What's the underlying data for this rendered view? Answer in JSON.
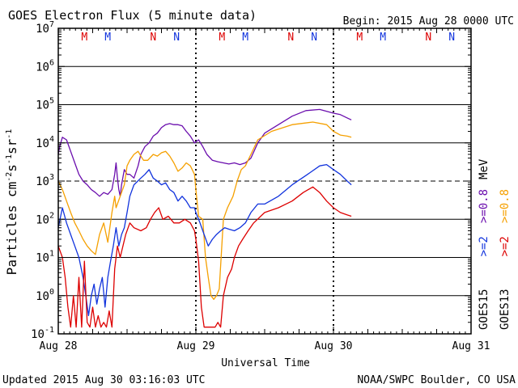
{
  "chart_data": {
    "type": "line",
    "title": "GOES Electron Flux (5 minute data)",
    "begin_label": "Begin: 2015 Aug 28 0000 UTC",
    "xlabel": "Universal Time",
    "ylabel": "Particles cm⁻²s⁻¹sr⁻¹",
    "ylabel_parts": {
      "base": "Particles cm",
      "s1": "-2",
      "mid": "s",
      "s2": "-1",
      "mid2": "sr",
      "s3": "-1"
    },
    "y_scale": "log",
    "ylim": [
      0.1,
      10000000
    ],
    "y_ticks": [
      {
        "value": 10000000,
        "base": "10",
        "exp": "7"
      },
      {
        "value": 1000000,
        "base": "10",
        "exp": "6"
      },
      {
        "value": 100000,
        "base": "10",
        "exp": "5"
      },
      {
        "value": 10000,
        "base": "10",
        "exp": "4"
      },
      {
        "value": 1000,
        "base": "10",
        "exp": "3"
      },
      {
        "value": 100,
        "base": "10",
        "exp": "2"
      },
      {
        "value": 10,
        "base": "10",
        "exp": "1"
      },
      {
        "value": 1,
        "base": "10",
        "exp": "0"
      },
      {
        "value": 0.1,
        "base": "10",
        "exp": "-1"
      }
    ],
    "threshold_value": 1000,
    "xlim_days": [
      0,
      3
    ],
    "x_ticks": [
      {
        "day": 0,
        "label": "Aug 28"
      },
      {
        "day": 1,
        "label": "Aug 29"
      },
      {
        "day": 2,
        "label": "Aug 30"
      },
      {
        "day": 3,
        "label": "Aug 31"
      }
    ],
    "markers": [
      {
        "label": "M",
        "day": 0.19,
        "color": "#dd0000"
      },
      {
        "label": "M",
        "day": 0.36,
        "color": "#1133dd"
      },
      {
        "label": "N",
        "day": 0.69,
        "color": "#dd0000"
      },
      {
        "label": "N",
        "day": 0.86,
        "color": "#1133dd"
      },
      {
        "label": "M",
        "day": 1.19,
        "color": "#dd0000"
      },
      {
        "label": "M",
        "day": 1.36,
        "color": "#1133dd"
      },
      {
        "label": "N",
        "day": 1.69,
        "color": "#dd0000"
      },
      {
        "label": "N",
        "day": 1.86,
        "color": "#1133dd"
      },
      {
        "label": "M",
        "day": 2.19,
        "color": "#dd0000"
      },
      {
        "label": "M",
        "day": 2.36,
        "color": "#1133dd"
      },
      {
        "label": "N",
        "day": 2.69,
        "color": "#dd0000"
      },
      {
        "label": "N",
        "day": 2.86,
        "color": "#1133dd"
      }
    ],
    "legend": [
      {
        "group": "GOES15",
        "label": ">=2",
        "color": "#1133dd"
      },
      {
        "group": "GOES15",
        "label": ">=0.8",
        "color": "#6a0dad"
      },
      {
        "group": "GOES13",
        "label": ">=2",
        "color": "#dd0000"
      },
      {
        "group": "GOES13",
        "label": ">=0.8",
        "color": "#f5a000"
      }
    ],
    "legend_unit": "MeV",
    "series": [
      {
        "name": "GOES15 >=0.8 MeV",
        "color": "#6a0dad",
        "points": [
          [
            0.0,
            5000
          ],
          [
            0.01,
            8000
          ],
          [
            0.03,
            14000
          ],
          [
            0.06,
            12000
          ],
          [
            0.09,
            6000
          ],
          [
            0.12,
            3000
          ],
          [
            0.15,
            1500
          ],
          [
            0.18,
            1000
          ],
          [
            0.21,
            800
          ],
          [
            0.24,
            600
          ],
          [
            0.27,
            500
          ],
          [
            0.3,
            400
          ],
          [
            0.33,
            500
          ],
          [
            0.36,
            450
          ],
          [
            0.39,
            600
          ],
          [
            0.41,
            1500
          ],
          [
            0.42,
            3000
          ],
          [
            0.43,
            1200
          ],
          [
            0.44,
            600
          ],
          [
            0.45,
            400
          ],
          [
            0.46,
            800
          ],
          [
            0.48,
            2000
          ],
          [
            0.5,
            1500
          ],
          [
            0.52,
            1500
          ],
          [
            0.55,
            1200
          ],
          [
            0.58,
            2500
          ],
          [
            0.6,
            5000
          ],
          [
            0.63,
            8000
          ],
          [
            0.66,
            10000
          ],
          [
            0.69,
            15000
          ],
          [
            0.72,
            18000
          ],
          [
            0.75,
            25000
          ],
          [
            0.78,
            30000
          ],
          [
            0.81,
            32000
          ],
          [
            0.84,
            30000
          ],
          [
            0.87,
            30000
          ],
          [
            0.9,
            28000
          ],
          [
            0.93,
            20000
          ],
          [
            0.96,
            15000
          ],
          [
            0.99,
            10000
          ],
          [
            1.02,
            12000
          ],
          [
            1.05,
            8000
          ],
          [
            1.08,
            5000
          ],
          [
            1.12,
            3500
          ],
          [
            1.16,
            3200
          ],
          [
            1.2,
            3000
          ],
          [
            1.24,
            2800
          ],
          [
            1.28,
            3000
          ],
          [
            1.32,
            2700
          ],
          [
            1.36,
            3000
          ],
          [
            1.4,
            4000
          ],
          [
            1.45,
            10000
          ],
          [
            1.5,
            18000
          ],
          [
            1.6,
            30000
          ],
          [
            1.7,
            50000
          ],
          [
            1.8,
            70000
          ],
          [
            1.9,
            75000
          ],
          [
            2.0,
            60000
          ],
          [
            2.05,
            55000
          ],
          [
            2.1,
            45000
          ],
          [
            2.13,
            40000
          ]
        ]
      },
      {
        "name": "GOES13 >=0.8 MeV",
        "color": "#f5a000",
        "points": [
          [
            0.0,
            1000
          ],
          [
            0.03,
            600
          ],
          [
            0.06,
            300
          ],
          [
            0.09,
            150
          ],
          [
            0.12,
            80
          ],
          [
            0.15,
            50
          ],
          [
            0.18,
            30
          ],
          [
            0.21,
            20
          ],
          [
            0.24,
            15
          ],
          [
            0.27,
            12
          ],
          [
            0.3,
            40
          ],
          [
            0.33,
            80
          ],
          [
            0.36,
            25
          ],
          [
            0.39,
            150
          ],
          [
            0.41,
            400
          ],
          [
            0.42,
            200
          ],
          [
            0.45,
            400
          ],
          [
            0.48,
            800
          ],
          [
            0.5,
            2500
          ],
          [
            0.52,
            3500
          ],
          [
            0.55,
            5000
          ],
          [
            0.58,
            6000
          ],
          [
            0.6,
            4500
          ],
          [
            0.62,
            3500
          ],
          [
            0.65,
            3500
          ],
          [
            0.69,
            5000
          ],
          [
            0.72,
            4500
          ],
          [
            0.75,
            5500
          ],
          [
            0.78,
            6000
          ],
          [
            0.81,
            4500
          ],
          [
            0.84,
            3000
          ],
          [
            0.87,
            1800
          ],
          [
            0.9,
            2200
          ],
          [
            0.93,
            3000
          ],
          [
            0.96,
            2500
          ],
          [
            0.99,
            1500
          ],
          [
            1.0,
            600
          ],
          [
            1.02,
            120
          ],
          [
            1.05,
            100
          ],
          [
            1.07,
            10
          ],
          [
            1.09,
            3
          ],
          [
            1.11,
            1
          ],
          [
            1.13,
            0.8
          ],
          [
            1.15,
            1
          ],
          [
            1.17,
            1.5
          ],
          [
            1.2,
            100
          ],
          [
            1.23,
            200
          ],
          [
            1.27,
            400
          ],
          [
            1.3,
            1000
          ],
          [
            1.33,
            2000
          ],
          [
            1.36,
            2500
          ],
          [
            1.4,
            5000
          ],
          [
            1.45,
            12000
          ],
          [
            1.55,
            20000
          ],
          [
            1.7,
            30000
          ],
          [
            1.85,
            35000
          ],
          [
            1.95,
            30000
          ],
          [
            2.0,
            20000
          ],
          [
            2.05,
            16000
          ],
          [
            2.1,
            15000
          ],
          [
            2.13,
            14000
          ]
        ]
      },
      {
        "name": "GOES15 >=2 MeV",
        "color": "#1133dd",
        "points": [
          [
            0.0,
            60
          ],
          [
            0.03,
            200
          ],
          [
            0.06,
            80
          ],
          [
            0.09,
            40
          ],
          [
            0.12,
            20
          ],
          [
            0.15,
            10
          ],
          [
            0.18,
            3
          ],
          [
            0.2,
            1
          ],
          [
            0.22,
            0.3
          ],
          [
            0.24,
            1
          ],
          [
            0.26,
            2
          ],
          [
            0.28,
            0.6
          ],
          [
            0.3,
            1.5
          ],
          [
            0.32,
            3
          ],
          [
            0.34,
            0.5
          ],
          [
            0.36,
            3
          ],
          [
            0.38,
            8
          ],
          [
            0.4,
            20
          ],
          [
            0.42,
            60
          ],
          [
            0.44,
            20
          ],
          [
            0.46,
            40
          ],
          [
            0.48,
            60
          ],
          [
            0.5,
            150
          ],
          [
            0.52,
            400
          ],
          [
            0.55,
            800
          ],
          [
            0.6,
            1200
          ],
          [
            0.63,
            1500
          ],
          [
            0.66,
            2000
          ],
          [
            0.69,
            1200
          ],
          [
            0.72,
            1000
          ],
          [
            0.75,
            800
          ],
          [
            0.78,
            900
          ],
          [
            0.81,
            600
          ],
          [
            0.84,
            500
          ],
          [
            0.87,
            300
          ],
          [
            0.9,
            400
          ],
          [
            0.93,
            300
          ],
          [
            0.96,
            200
          ],
          [
            0.99,
            200
          ],
          [
            1.0,
            150
          ],
          [
            1.03,
            80
          ],
          [
            1.06,
            40
          ],
          [
            1.09,
            20
          ],
          [
            1.12,
            30
          ],
          [
            1.15,
            40
          ],
          [
            1.18,
            50
          ],
          [
            1.21,
            60
          ],
          [
            1.24,
            55
          ],
          [
            1.28,
            50
          ],
          [
            1.32,
            60
          ],
          [
            1.36,
            80
          ],
          [
            1.4,
            150
          ],
          [
            1.45,
            250
          ],
          [
            1.5,
            250
          ],
          [
            1.6,
            400
          ],
          [
            1.7,
            800
          ],
          [
            1.8,
            1400
          ],
          [
            1.9,
            2500
          ],
          [
            1.95,
            2700
          ],
          [
            2.0,
            2000
          ],
          [
            2.05,
            1500
          ],
          [
            2.1,
            1000
          ],
          [
            2.13,
            800
          ]
        ]
      },
      {
        "name": "GOES13 >=2 MeV",
        "color": "#dd0000",
        "points": [
          [
            0.0,
            20
          ],
          [
            0.03,
            10
          ],
          [
            0.05,
            3
          ],
          [
            0.07,
            0.5
          ],
          [
            0.09,
            0.15
          ],
          [
            0.11,
            1
          ],
          [
            0.13,
            0.15
          ],
          [
            0.15,
            3
          ],
          [
            0.17,
            0.15
          ],
          [
            0.19,
            8
          ],
          [
            0.21,
            0.2
          ],
          [
            0.23,
            0.15
          ],
          [
            0.25,
            0.5
          ],
          [
            0.27,
            0.15
          ],
          [
            0.29,
            0.3
          ],
          [
            0.31,
            0.15
          ],
          [
            0.33,
            0.2
          ],
          [
            0.35,
            0.15
          ],
          [
            0.37,
            0.4
          ],
          [
            0.39,
            0.15
          ],
          [
            0.41,
            5
          ],
          [
            0.43,
            20
          ],
          [
            0.45,
            10
          ],
          [
            0.47,
            20
          ],
          [
            0.49,
            40
          ],
          [
            0.52,
            80
          ],
          [
            0.55,
            60
          ],
          [
            0.6,
            50
          ],
          [
            0.64,
            60
          ],
          [
            0.67,
            100
          ],
          [
            0.7,
            150
          ],
          [
            0.73,
            200
          ],
          [
            0.76,
            100
          ],
          [
            0.8,
            120
          ],
          [
            0.84,
            80
          ],
          [
            0.88,
            80
          ],
          [
            0.92,
            100
          ],
          [
            0.96,
            80
          ],
          [
            0.99,
            50
          ],
          [
            1.0,
            30
          ],
          [
            1.02,
            8
          ],
          [
            1.04,
            0.5
          ],
          [
            1.06,
            0.15
          ],
          [
            1.08,
            0.15
          ],
          [
            1.1,
            0.15
          ],
          [
            1.12,
            0.15
          ],
          [
            1.14,
            0.15
          ],
          [
            1.16,
            0.2
          ],
          [
            1.18,
            0.15
          ],
          [
            1.2,
            1
          ],
          [
            1.23,
            3
          ],
          [
            1.26,
            5
          ],
          [
            1.28,
            10
          ],
          [
            1.31,
            20
          ],
          [
            1.34,
            30
          ],
          [
            1.38,
            50
          ],
          [
            1.42,
            80
          ],
          [
            1.5,
            150
          ],
          [
            1.6,
            200
          ],
          [
            1.7,
            300
          ],
          [
            1.78,
            500
          ],
          [
            1.85,
            700
          ],
          [
            1.9,
            500
          ],
          [
            1.95,
            300
          ],
          [
            2.0,
            200
          ],
          [
            2.05,
            150
          ],
          [
            2.1,
            130
          ],
          [
            2.13,
            120
          ]
        ]
      }
    ],
    "footer_left": "Updated 2015 Aug 30 03:16:03 UTC",
    "footer_right": "NOAA/SWPC Boulder, CO USA"
  }
}
